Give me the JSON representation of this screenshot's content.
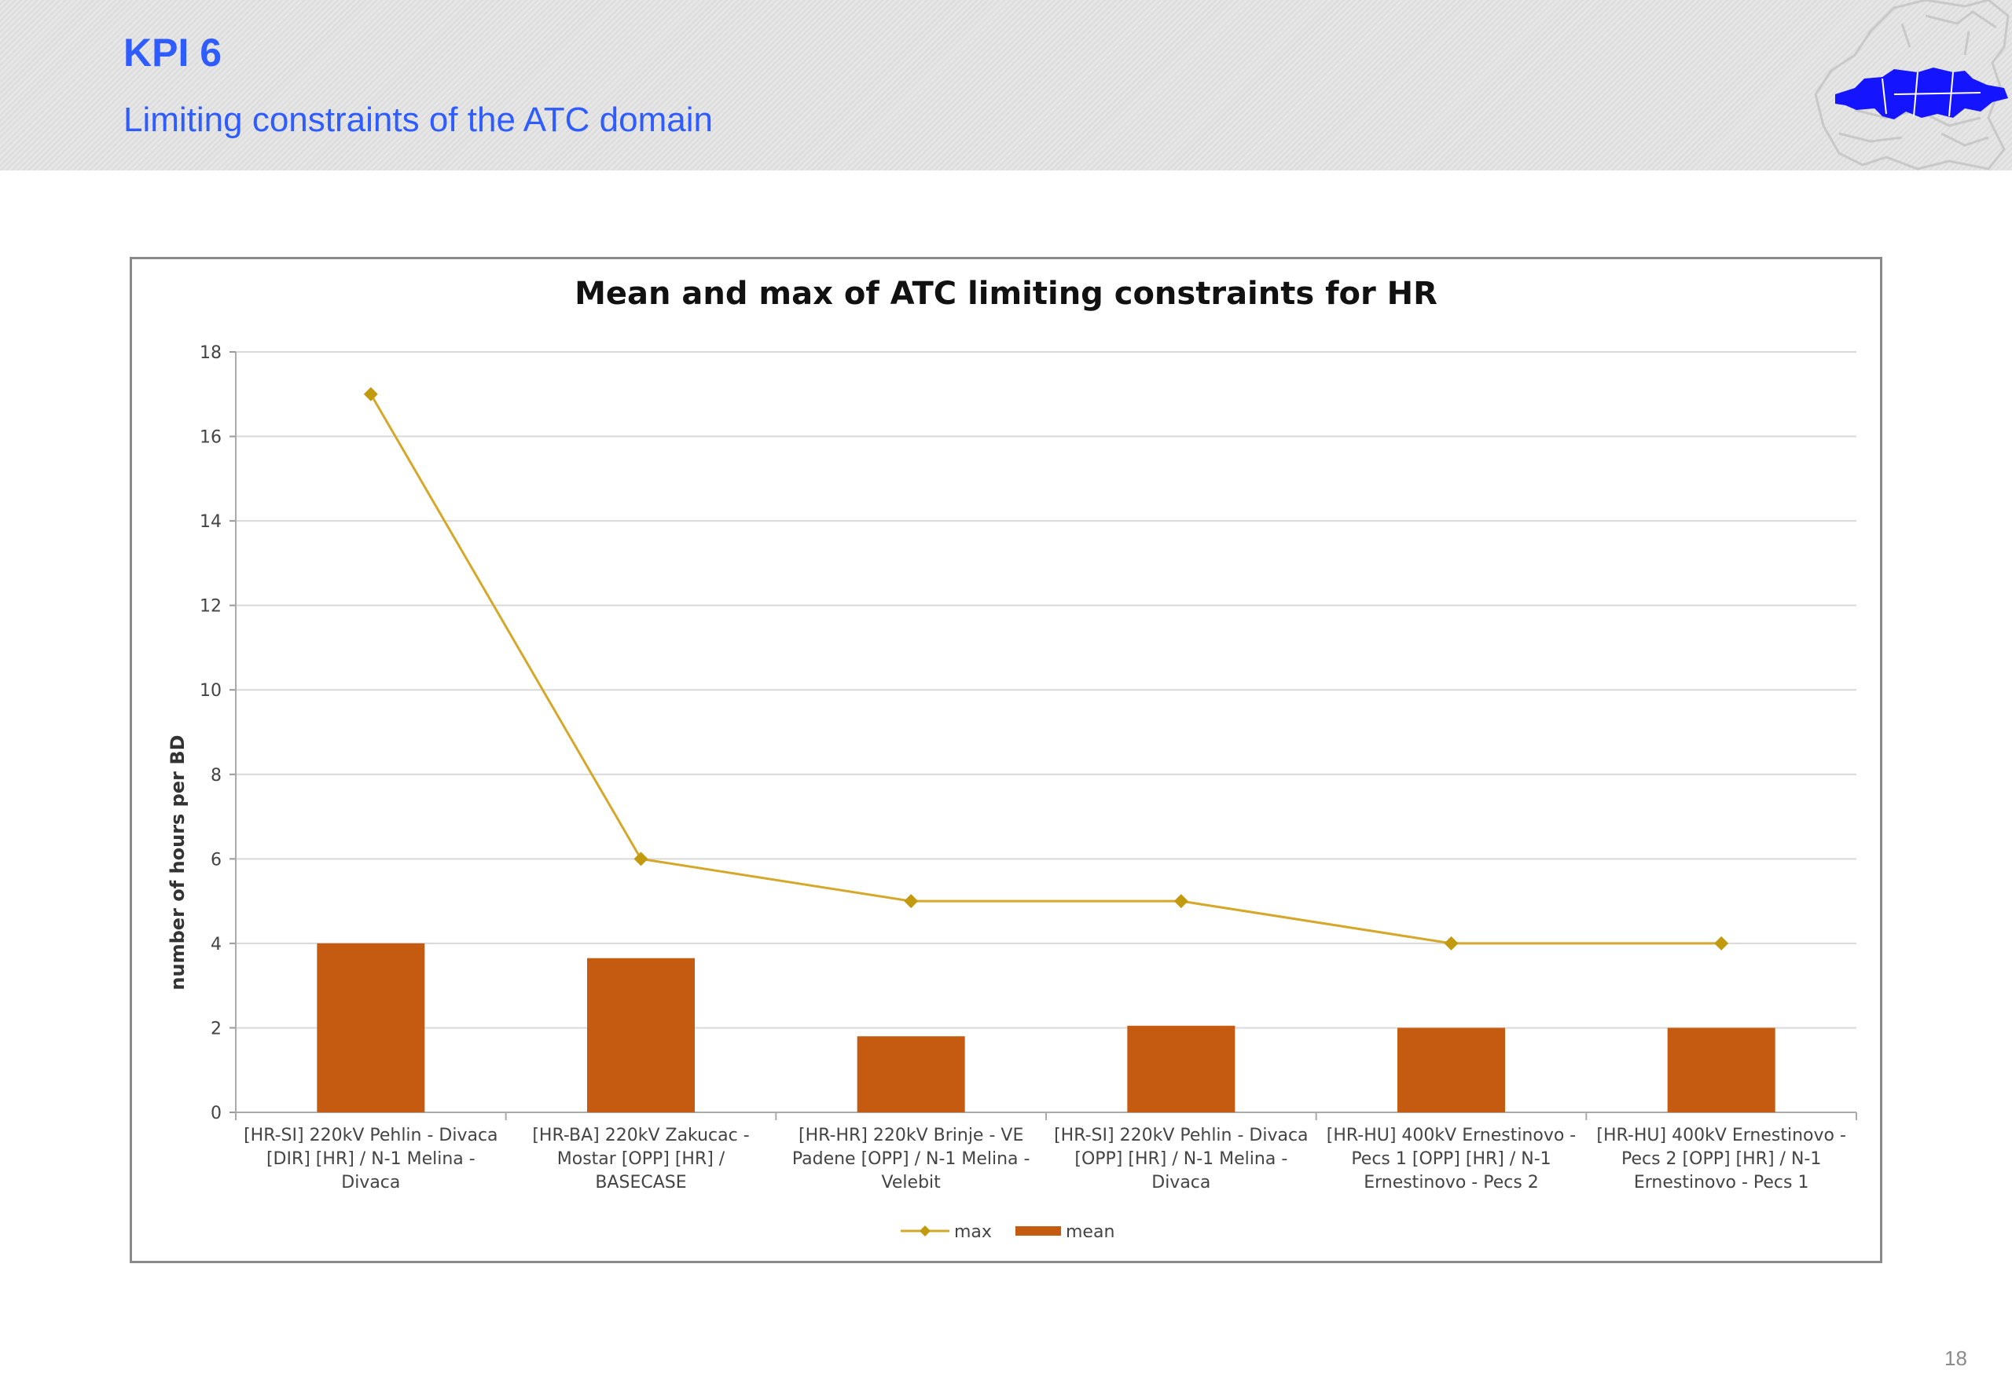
{
  "slide": {
    "title": "KPI 6",
    "subtitle": "Limiting constraints of the ATC domain",
    "page_number": "18",
    "logo_icon": "europe-map-icon"
  },
  "colors": {
    "title_blue": "#2f5cff",
    "max_line": "#d4a82a",
    "max_marker": "#c29a10",
    "mean_bar": "#c55a11",
    "grid": "#d9d9d9",
    "logo_fill": "#1414ff"
  },
  "chart_data": {
    "type": "bar",
    "title": "Mean and max of ATC limiting constraints for HR",
    "xlabel": "",
    "ylabel": "number of hours per BD",
    "ylim": [
      0,
      18
    ],
    "yticks": [
      0,
      2,
      4,
      6,
      8,
      10,
      12,
      14,
      16,
      18
    ],
    "grid": true,
    "legend_position": "bottom",
    "categories": [
      [
        "[HR-SI] 220kV Pehlin - Divaca",
        "[DIR] [HR] / N-1 Melina -",
        "Divaca"
      ],
      [
        "[HR-BA] 220kV Zakucac -",
        "Mostar [OPP] [HR] /",
        "BASECASE"
      ],
      [
        "[HR-HR] 220kV Brinje - VE",
        "Padene [OPP] / N-1 Melina -",
        "Velebit"
      ],
      [
        "[HR-SI] 220kV Pehlin - Divaca",
        "[OPP] [HR] / N-1 Melina -",
        "Divaca"
      ],
      [
        "[HR-HU] 400kV Ernestinovo -",
        "Pecs 1 [OPP] [HR] / N-1",
        "Ernestinovo - Pecs 2"
      ],
      [
        "[HR-HU] 400kV Ernestinovo -",
        "Pecs 2 [OPP] [HR] / N-1",
        "Ernestinovo - Pecs 1"
      ]
    ],
    "series": [
      {
        "name": "max",
        "type": "line",
        "values": [
          17,
          6,
          5,
          5,
          4,
          4
        ]
      },
      {
        "name": "mean",
        "type": "bar",
        "values": [
          4.0,
          3.65,
          1.8,
          2.05,
          2.0,
          2.0
        ]
      }
    ]
  }
}
